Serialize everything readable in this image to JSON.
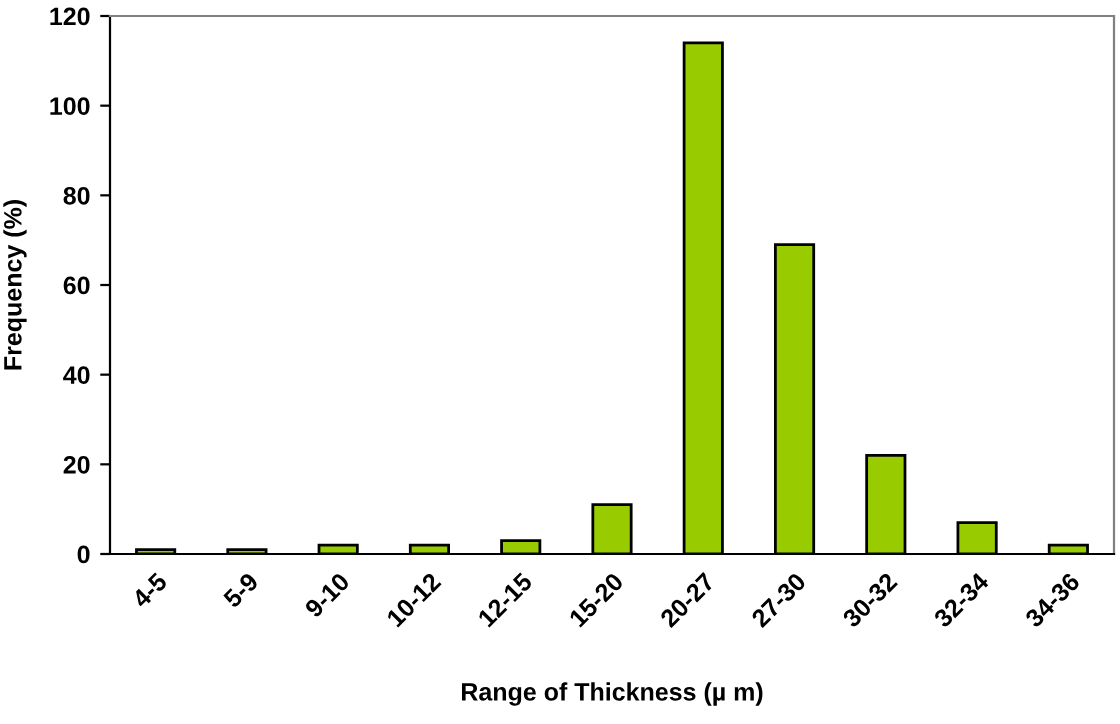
{
  "chart_data": {
    "type": "bar",
    "xlabel": "Range of Thickness (µ m)",
    "ylabel": "Frequency (%)",
    "categories": [
      "4-5",
      "5-9",
      "9-10",
      "10-12",
      "12-15",
      "15-20",
      "20-27",
      "27-30",
      "30-32",
      "32-34",
      "34-36"
    ],
    "values": [
      1,
      1,
      2,
      2,
      3,
      11,
      114,
      69,
      22,
      7,
      2
    ],
    "color": "#99cc00",
    "ylim": [
      0,
      120
    ],
    "yticks": [
      0,
      20,
      40,
      60,
      80,
      100,
      120
    ],
    "grid": false,
    "legend": false
  }
}
